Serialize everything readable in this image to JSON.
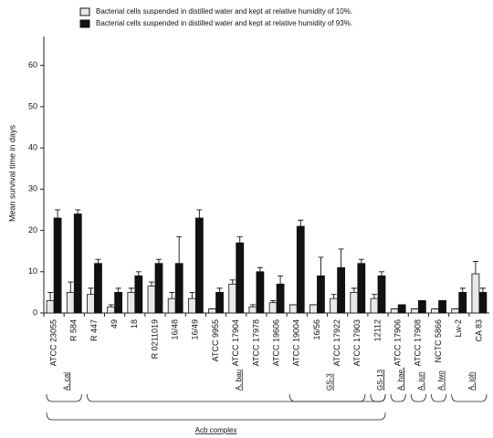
{
  "chart_data": {
    "type": "bar",
    "y_label": "Mean survival time in days",
    "categories": [
      "ATCC 23055",
      "R 584",
      "R 447",
      "49",
      "18",
      "R 0211019",
      "16/48",
      "16/49",
      "ATCC 9955",
      "ATCC 17904",
      "ATCC 17978",
      "ATCC 19606",
      "ATCC 19004",
      "16/56",
      "ATCC 17922",
      "ATCC 17903",
      "12112",
      "ATCC 17906",
      "ATCC 17908",
      "NCTC 5866",
      "Lw-2",
      "CA 83"
    ],
    "series": [
      {
        "name": "Bacterial cells suspended in distilled water and kept at relative humidity of 10%.",
        "color": "#e8e8e8",
        "values": [
          3,
          5,
          4.5,
          1.5,
          5,
          6.5,
          3.5,
          3.5,
          1,
          7,
          1.5,
          2.5,
          2,
          2,
          3.5,
          5,
          3.5,
          1,
          1,
          1,
          1,
          9.5
        ],
        "errors": [
          2,
          2.5,
          1.5,
          0.5,
          1,
          1,
          1.5,
          1.5,
          0,
          1,
          0.5,
          0.5,
          0,
          0,
          1,
          1,
          1,
          0,
          0,
          0,
          0,
          3
        ]
      },
      {
        "name": "Bacterial cells suspended in distilled water and kept at relative humidity of 93%.",
        "color": "#111111",
        "values": [
          23,
          24,
          12,
          5,
          9,
          12,
          12,
          23,
          5,
          17,
          10,
          7,
          21,
          9,
          11,
          12,
          9,
          2,
          3,
          3,
          5,
          5
        ],
        "errors": [
          2,
          1,
          1,
          1,
          1,
          1,
          6.5,
          2,
          1,
          1.5,
          1,
          2,
          1.5,
          4.5,
          4.5,
          1,
          1,
          0,
          0,
          0,
          1,
          1
        ]
      }
    ],
    "groups": [
      "A. cal",
      "A. bau",
      "GS-3",
      "GS-13",
      "A. hae.",
      "A. jun",
      "A. lwo",
      "A. joh",
      "Acb complex"
    ],
    "ylim": [
      0,
      67
    ],
    "yticks": [
      0,
      10,
      20,
      30,
      40,
      50,
      60
    ]
  }
}
